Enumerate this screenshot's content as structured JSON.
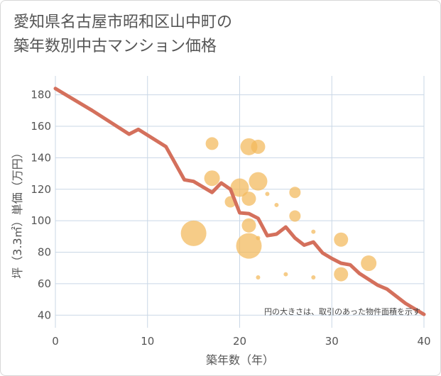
{
  "title_line1": "愛知県名古屋市昭和区山中町の",
  "title_line2": "築年数別中古マンション価格",
  "note": "円の大きさは、取引のあった物件面積を示す",
  "colors": {
    "line": "#d4705c",
    "bubble": "#f2b95a",
    "grid": "#c9d7e6",
    "text": "#555555"
  },
  "chart_data": {
    "type": "scatter",
    "xlabel": "築年数（年）",
    "ylabel": "坪（3.3㎡）単価（万円）",
    "xlim": [
      0,
      40
    ],
    "ylim": [
      32,
      192
    ],
    "xticks": [
      0,
      10,
      20,
      30,
      40
    ],
    "yticks": [
      40,
      60,
      80,
      100,
      120,
      140,
      160,
      180
    ],
    "grid": true,
    "line": {
      "x": [
        0,
        4,
        8,
        9,
        12,
        14,
        15,
        17,
        18,
        19,
        20,
        21,
        22,
        23,
        24,
        25,
        26,
        27,
        28,
        29,
        30,
        31,
        32,
        33,
        35,
        36,
        38,
        40
      ],
      "y": [
        184,
        170,
        155,
        158,
        147,
        126,
        125,
        118,
        124,
        120,
        105,
        104.5,
        101.5,
        90.5,
        91.5,
        96,
        89,
        84.5,
        86.5,
        79.5,
        76,
        73,
        72,
        66.5,
        59,
        56.5,
        47.5,
        40.5
      ]
    },
    "bubbles": [
      {
        "x": 15,
        "y": 92,
        "size": 18
      },
      {
        "x": 17,
        "y": 149,
        "size": 9
      },
      {
        "x": 17,
        "y": 127,
        "size": 11
      },
      {
        "x": 19,
        "y": 112,
        "size": 8
      },
      {
        "x": 20,
        "y": 121,
        "size": 13
      },
      {
        "x": 21,
        "y": 147,
        "size": 12
      },
      {
        "x": 21,
        "y": 114,
        "size": 10
      },
      {
        "x": 21,
        "y": 97,
        "size": 10
      },
      {
        "x": 21,
        "y": 84,
        "size": 18
      },
      {
        "x": 22,
        "y": 147,
        "size": 10
      },
      {
        "x": 22,
        "y": 125,
        "size": 13
      },
      {
        "x": 22,
        "y": 89,
        "size": 3
      },
      {
        "x": 22,
        "y": 64,
        "size": 3
      },
      {
        "x": 23,
        "y": 117,
        "size": 3
      },
      {
        "x": 24,
        "y": 110,
        "size": 3
      },
      {
        "x": 25,
        "y": 66,
        "size": 3
      },
      {
        "x": 26,
        "y": 118,
        "size": 8
      },
      {
        "x": 26,
        "y": 103,
        "size": 8
      },
      {
        "x": 28,
        "y": 93,
        "size": 3
      },
      {
        "x": 28,
        "y": 64,
        "size": 3
      },
      {
        "x": 31,
        "y": 88,
        "size": 10
      },
      {
        "x": 31,
        "y": 66,
        "size": 10
      },
      {
        "x": 34,
        "y": 73,
        "size": 11
      }
    ]
  }
}
